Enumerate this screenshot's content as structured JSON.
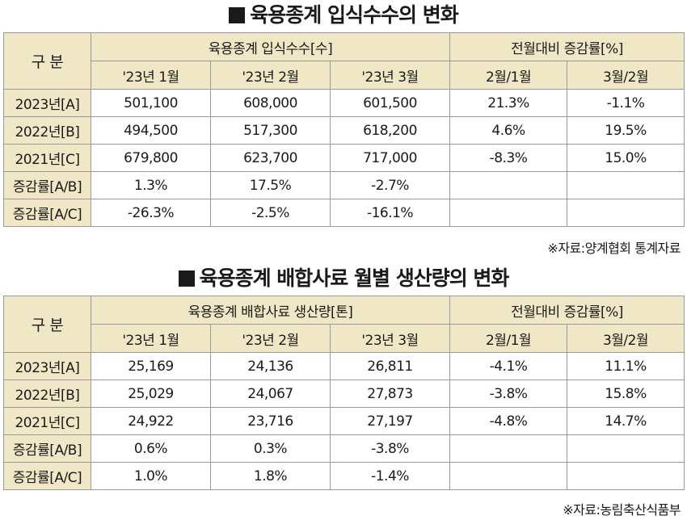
{
  "table1": {
    "title": "육용종계 입식수수의 변화",
    "corner": "구 분",
    "group_main": "육용종계 입식수수[수]",
    "group_growth": "전월대비 증감률[%]",
    "months": [
      "'23년 1월",
      "'23년 2월",
      "'23년 3월"
    ],
    "growth_cols": [
      "2월/1월",
      "3월/2월"
    ],
    "rows": [
      {
        "label": "2023년[A]",
        "values": [
          "501,100",
          "608,000",
          "601,500"
        ],
        "growth": [
          "21.3%",
          "-1.1%"
        ]
      },
      {
        "label": "2022년[B]",
        "values": [
          "494,500",
          "517,300",
          "618,200"
        ],
        "growth": [
          "4.6%",
          "19.5%"
        ]
      },
      {
        "label": "2021년[C]",
        "values": [
          "679,800",
          "623,700",
          "717,000"
        ],
        "growth": [
          "-8.3%",
          "15.0%"
        ]
      },
      {
        "label": "증감률[A/B]",
        "values": [
          "1.3%",
          "17.5%",
          "-2.7%"
        ],
        "growth": [
          "",
          ""
        ]
      },
      {
        "label": "증감률[A/C]",
        "values": [
          "-26.3%",
          "-2.5%",
          "-16.1%"
        ],
        "growth": [
          "",
          ""
        ]
      }
    ],
    "source": "※자료:양계협회 통계자료"
  },
  "table2": {
    "title": "육용종계 배합사료 월별 생산량의 변화",
    "corner": "구 분",
    "group_main": "육용종계 배합사료 생산량[톤]",
    "group_growth": "전월대비 증감률[%]",
    "months": [
      "'23년 1월",
      "'23년 2월",
      "'23년 3월"
    ],
    "growth_cols": [
      "2월/1월",
      "3월/2월"
    ],
    "rows": [
      {
        "label": "2023년[A]",
        "values": [
          "25,169",
          "24,136",
          "26,811"
        ],
        "growth": [
          "-4.1%",
          "11.1%"
        ]
      },
      {
        "label": "2022년[B]",
        "values": [
          "25,029",
          "24,067",
          "27,873"
        ],
        "growth": [
          "-3.8%",
          "15.8%"
        ]
      },
      {
        "label": "2021년[C]",
        "values": [
          "24,922",
          "23,716",
          "27,197"
        ],
        "growth": [
          "-4.8%",
          "14.7%"
        ]
      },
      {
        "label": "증감률[A/B]",
        "values": [
          "0.6%",
          "0.3%",
          "-3.8%"
        ],
        "growth": [
          "",
          ""
        ]
      },
      {
        "label": "증감률[A/C]",
        "values": [
          "1.0%",
          "1.8%",
          "-1.4%"
        ],
        "growth": [
          "",
          ""
        ]
      }
    ],
    "source": "※자료:농림축산식품부"
  }
}
